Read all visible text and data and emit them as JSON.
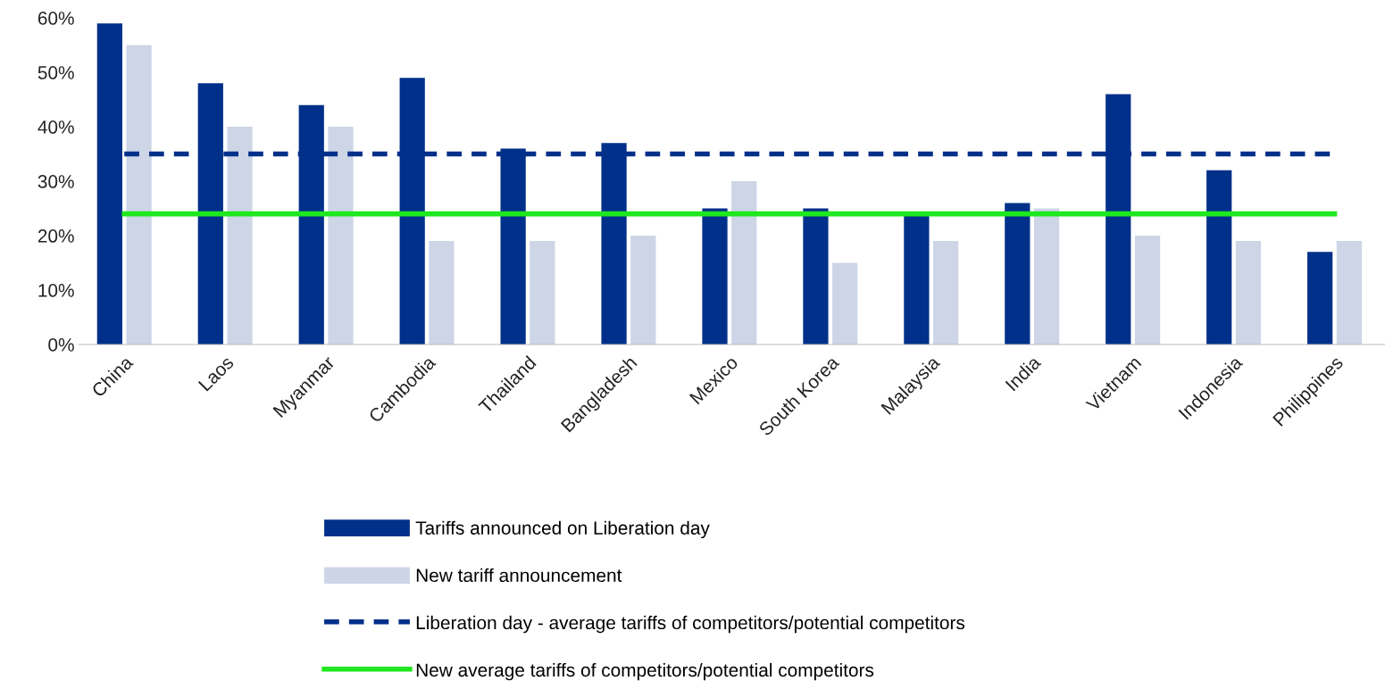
{
  "chart_data": {
    "type": "bar",
    "categories": [
      "China",
      "Laos",
      "Myanmar",
      "Cambodia",
      "Thailand",
      "Bangladesh",
      "Mexico",
      "South Korea",
      "Malaysia",
      "India",
      "Vietnam",
      "Indonesia",
      "Philippines"
    ],
    "series": [
      {
        "name": "Tariffs announced on Liberation day",
        "color": "#00308a",
        "values": [
          59,
          48,
          44,
          49,
          36,
          37,
          25,
          25,
          24,
          26,
          46,
          32,
          17
        ]
      },
      {
        "name": "New tariff announcement",
        "color": "#cdd5e7",
        "values": [
          55,
          40,
          40,
          19,
          19,
          20,
          30,
          15,
          19,
          25,
          20,
          19,
          19
        ]
      },
      {
        "name": "Liberation day - average tariffs of competitors/potential competitors",
        "color": "#00308a",
        "type": "line",
        "line_style": "dashed",
        "values": [
          35,
          35,
          35,
          35,
          35,
          35,
          35,
          35,
          35,
          35,
          35,
          35,
          35
        ]
      },
      {
        "name": "New average tariffs of competitors/potential competitors",
        "color": "#1ee81e",
        "type": "line",
        "line_style": "solid",
        "values": [
          24,
          24,
          24,
          24,
          24,
          24,
          24,
          24,
          24,
          24,
          24,
          24,
          24
        ]
      }
    ],
    "ylim": [
      0,
      60
    ],
    "yticks": [
      {
        "value": 0,
        "label": "0%"
      },
      {
        "value": 10,
        "label": "10%"
      },
      {
        "value": 20,
        "label": "20%"
      },
      {
        "value": 30,
        "label": "30%"
      },
      {
        "value": 40,
        "label": "40%"
      },
      {
        "value": 50,
        "label": "50%"
      },
      {
        "value": 60,
        "label": "60%"
      }
    ],
    "grid": false,
    "legend": "bottom"
  }
}
